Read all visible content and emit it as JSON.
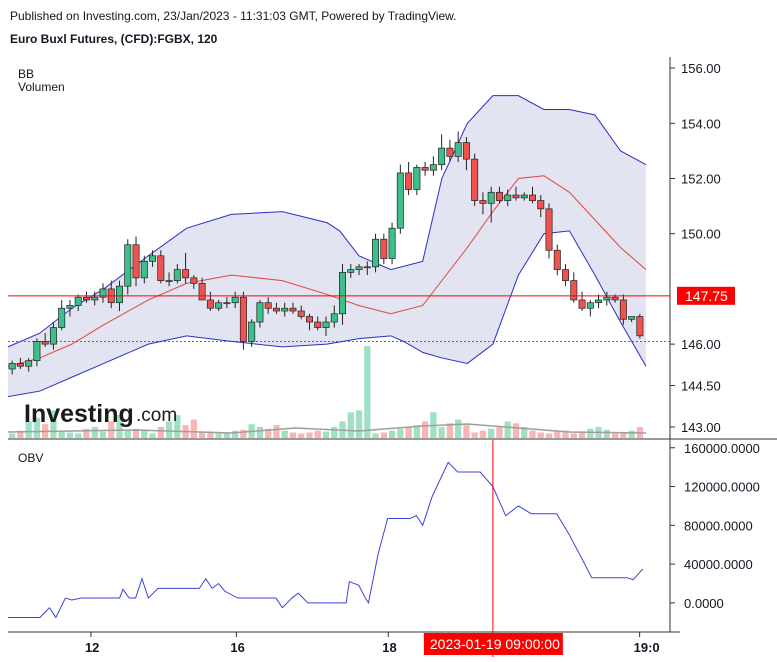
{
  "header": {
    "published": "Published on Investing.com, 23/Jan/2023 - 11:31:03 GMT, Powered by TradingView.",
    "title": "Euro Buxl Futures, (CFD):FGBX, 120"
  },
  "watermark": {
    "brand": "Investing",
    "suffix": ".com"
  },
  "colors": {
    "up": "#26a69a",
    "up_fill": "#3dbf8a",
    "down": "#ef5350",
    "bb_band": "#2a2ec8",
    "bb_mid": "#e2453c",
    "bb_fill": "#e3e4f2",
    "obv": "#3c44dd",
    "last_price": "#ff0000"
  },
  "chart_data": [
    {
      "type": "candlestick",
      "indicators": [
        "BB",
        "Volumen"
      ],
      "y_ticks": [
        "156.00",
        "154.00",
        "152.00",
        "150.00",
        "146.00",
        "144.50",
        "143.00"
      ],
      "ylim": [
        142.6,
        156.4
      ],
      "last_price_label": "147.75",
      "last_price": 147.75,
      "prev_close": 146.1,
      "x_ticks": [
        "12",
        "16",
        "18",
        "19:0"
      ],
      "candles": [
        [
          145.1,
          145.4,
          144.9,
          145.3
        ],
        [
          145.3,
          145.5,
          145.1,
          145.2
        ],
        [
          145.2,
          145.5,
          145.0,
          145.4
        ],
        [
          145.4,
          146.2,
          145.2,
          146.1
        ],
        [
          146.1,
          146.4,
          145.9,
          146.0
        ],
        [
          146.0,
          146.8,
          145.8,
          146.6
        ],
        [
          146.6,
          147.6,
          146.5,
          147.3
        ],
        [
          147.3,
          147.6,
          147.0,
          147.4
        ],
        [
          147.4,
          147.8,
          147.2,
          147.7
        ],
        [
          147.7,
          147.9,
          147.5,
          147.6
        ],
        [
          147.6,
          147.9,
          147.4,
          147.7
        ],
        [
          147.7,
          148.2,
          147.5,
          148.0
        ],
        [
          148.0,
          148.3,
          147.3,
          147.5
        ],
        [
          147.5,
          148.3,
          147.2,
          148.1
        ],
        [
          148.1,
          149.8,
          147.8,
          149.6
        ],
        [
          149.6,
          149.9,
          148.1,
          148.4
        ],
        [
          148.4,
          149.2,
          148.2,
          149.0
        ],
        [
          149.0,
          149.4,
          148.8,
          149.2
        ],
        [
          149.2,
          149.4,
          148.2,
          148.3
        ],
        [
          148.3,
          148.6,
          148.1,
          148.3
        ],
        [
          148.3,
          148.9,
          148.2,
          148.7
        ],
        [
          148.7,
          149.3,
          148.2,
          148.4
        ],
        [
          148.4,
          148.5,
          148.0,
          148.2
        ],
        [
          148.2,
          148.4,
          147.6,
          147.6
        ],
        [
          147.6,
          147.9,
          147.2,
          147.3
        ],
        [
          147.3,
          147.6,
          147.2,
          147.5
        ],
        [
          147.5,
          147.7,
          147.3,
          147.5
        ],
        [
          147.5,
          147.9,
          147.3,
          147.7
        ],
        [
          147.7,
          147.9,
          145.8,
          146.1
        ],
        [
          146.1,
          146.9,
          145.9,
          146.8
        ],
        [
          146.8,
          147.6,
          146.6,
          147.5
        ],
        [
          147.5,
          147.7,
          147.1,
          147.3
        ],
        [
          147.3,
          147.5,
          147.1,
          147.2
        ],
        [
          147.2,
          147.5,
          147.0,
          147.3
        ],
        [
          147.3,
          147.5,
          147.1,
          147.2
        ],
        [
          147.2,
          147.4,
          146.9,
          147.0
        ],
        [
          147.0,
          147.1,
          146.5,
          146.8
        ],
        [
          146.8,
          147.0,
          146.5,
          146.6
        ],
        [
          146.6,
          147.0,
          146.3,
          146.8
        ],
        [
          146.8,
          147.4,
          146.6,
          147.1
        ],
        [
          147.1,
          148.9,
          146.7,
          148.6
        ],
        [
          148.6,
          148.9,
          148.4,
          148.7
        ],
        [
          148.7,
          148.9,
          148.5,
          148.8
        ],
        [
          148.8,
          149.0,
          148.5,
          148.8
        ],
        [
          148.8,
          150.0,
          148.6,
          149.8
        ],
        [
          149.8,
          150.0,
          148.9,
          149.1
        ],
        [
          149.1,
          150.4,
          148.9,
          150.2
        ],
        [
          150.2,
          152.5,
          150.0,
          152.2
        ],
        [
          152.2,
          152.6,
          151.4,
          151.6
        ],
        [
          151.6,
          152.5,
          151.4,
          152.4
        ],
        [
          152.4,
          152.6,
          152.1,
          152.3
        ],
        [
          152.3,
          152.8,
          152.1,
          152.5
        ],
        [
          152.5,
          153.6,
          152.3,
          153.1
        ],
        [
          153.1,
          153.4,
          152.6,
          152.8
        ],
        [
          152.8,
          153.7,
          152.6,
          153.3
        ],
        [
          153.3,
          153.5,
          152.3,
          152.7
        ],
        [
          152.7,
          152.9,
          151.0,
          151.2
        ],
        [
          151.2,
          151.5,
          150.7,
          151.1
        ],
        [
          151.1,
          151.7,
          150.4,
          151.5
        ],
        [
          151.5,
          151.7,
          151.1,
          151.2
        ],
        [
          151.2,
          151.6,
          151.0,
          151.4
        ],
        [
          151.4,
          151.7,
          151.2,
          151.3
        ],
        [
          151.3,
          151.5,
          151.2,
          151.4
        ],
        [
          151.4,
          151.7,
          151.1,
          151.2
        ],
        [
          151.2,
          151.4,
          150.6,
          150.9
        ],
        [
          150.9,
          151.1,
          149.1,
          149.4
        ],
        [
          149.4,
          149.6,
          148.5,
          148.7
        ],
        [
          148.7,
          148.9,
          148.1,
          148.3
        ],
        [
          148.3,
          148.6,
          147.5,
          147.6
        ],
        [
          147.6,
          147.9,
          147.2,
          147.3
        ],
        [
          147.3,
          147.6,
          147.0,
          147.5
        ],
        [
          147.5,
          147.8,
          147.3,
          147.6
        ],
        [
          147.6,
          147.9,
          147.4,
          147.7
        ],
        [
          147.7,
          147.8,
          147.5,
          147.6
        ],
        [
          147.6,
          147.8,
          146.7,
          146.9
        ],
        [
          146.9,
          147.0,
          146.8,
          147.0
        ],
        [
          147.0,
          147.1,
          146.2,
          146.3
        ]
      ],
      "bb_upper": [
        [
          0,
          145.9
        ],
        [
          0.05,
          146.4
        ],
        [
          0.1,
          147.3
        ],
        [
          0.15,
          148.0
        ],
        [
          0.22,
          149.2
        ],
        [
          0.28,
          150.2
        ],
        [
          0.35,
          150.7
        ],
        [
          0.43,
          150.8
        ],
        [
          0.5,
          150.4
        ],
        [
          0.52,
          150.1
        ],
        [
          0.55,
          149.2
        ],
        [
          0.6,
          148.7
        ],
        [
          0.65,
          149.0
        ],
        [
          0.68,
          152.0
        ],
        [
          0.72,
          154.0
        ],
        [
          0.76,
          155.0
        ],
        [
          0.8,
          155.0
        ],
        [
          0.84,
          154.5
        ],
        [
          0.88,
          154.5
        ],
        [
          0.92,
          154.3
        ],
        [
          0.96,
          153.0
        ],
        [
          1,
          152.5
        ]
      ],
      "bb_middle": [
        [
          0,
          145.2
        ],
        [
          0.05,
          145.5
        ],
        [
          0.1,
          146.0
        ],
        [
          0.15,
          146.7
        ],
        [
          0.22,
          147.6
        ],
        [
          0.28,
          148.2
        ],
        [
          0.35,
          148.5
        ],
        [
          0.43,
          148.3
        ],
        [
          0.5,
          147.8
        ],
        [
          0.55,
          147.4
        ],
        [
          0.6,
          147.1
        ],
        [
          0.65,
          147.4
        ],
        [
          0.68,
          148.3
        ],
        [
          0.72,
          149.5
        ],
        [
          0.76,
          150.8
        ],
        [
          0.8,
          152.0
        ],
        [
          0.84,
          152.1
        ],
        [
          0.88,
          151.5
        ],
        [
          0.92,
          150.5
        ],
        [
          0.96,
          149.5
        ],
        [
          1,
          148.7
        ]
      ],
      "bb_lower": [
        [
          0,
          144.1
        ],
        [
          0.05,
          144.3
        ],
        [
          0.1,
          144.8
        ],
        [
          0.15,
          145.3
        ],
        [
          0.22,
          146.0
        ],
        [
          0.28,
          146.3
        ],
        [
          0.35,
          146.1
        ],
        [
          0.43,
          145.9
        ],
        [
          0.5,
          146.0
        ],
        [
          0.55,
          146.2
        ],
        [
          0.6,
          146.3
        ],
        [
          0.62,
          146.1
        ],
        [
          0.65,
          145.7
        ],
        [
          0.68,
          145.5
        ],
        [
          0.72,
          145.3
        ],
        [
          0.76,
          146.0
        ],
        [
          0.8,
          148.5
        ],
        [
          0.84,
          150.0
        ],
        [
          0.88,
          150.1
        ],
        [
          0.92,
          148.5
        ],
        [
          0.96,
          146.8
        ],
        [
          1,
          145.2
        ]
      ],
      "volume_max": 1,
      "volumes": [
        0.05,
        0.08,
        0.18,
        0.22,
        0.15,
        0.3,
        0.08,
        0.06,
        0.05,
        0.1,
        0.12,
        0.07,
        0.18,
        0.25,
        0.08,
        0.1,
        0.08,
        0.05,
        0.12,
        0.18,
        0.25,
        0.14,
        0.2,
        0.06,
        0.07,
        0.05,
        0.06,
        0.08,
        0.09,
        0.15,
        0.12,
        0.1,
        0.14,
        0.08,
        0.06,
        0.05,
        0.06,
        0.08,
        0.07,
        0.12,
        0.18,
        0.28,
        0.3,
        1.0,
        0.05,
        0.06,
        0.08,
        0.1,
        0.12,
        0.14,
        0.18,
        0.28,
        0.12,
        0.16,
        0.2,
        0.14,
        0.06,
        0.08,
        0.1,
        0.12,
        0.18,
        0.16,
        0.12,
        0.08,
        0.06,
        0.05,
        0.07,
        0.08,
        0.05,
        0.06,
        0.1,
        0.12,
        0.09,
        0.05,
        0.06,
        0.08,
        0.12
      ]
    },
    {
      "type": "line",
      "name": "OBV",
      "y_ticks": [
        "160000.0000",
        "120000.0000",
        "80000.0000",
        "40000.0000",
        "0.0000"
      ],
      "ylim": [
        -30000,
        168000
      ],
      "crosshair_label": "2023-01-19 09:00:00",
      "crosshair_at": 0.76,
      "points": [
        [
          0,
          -15000
        ],
        [
          0.05,
          -15000
        ],
        [
          0.065,
          -5000
        ],
        [
          0.075,
          -15000
        ],
        [
          0.09,
          5000
        ],
        [
          0.1,
          3000
        ],
        [
          0.115,
          5000
        ],
        [
          0.125,
          5000
        ],
        [
          0.15,
          5000
        ],
        [
          0.175,
          5000
        ],
        [
          0.18,
          14000
        ],
        [
          0.19,
          5000
        ],
        [
          0.2,
          5000
        ],
        [
          0.21,
          25000
        ],
        [
          0.22,
          5000
        ],
        [
          0.235,
          15000
        ],
        [
          0.25,
          15000
        ],
        [
          0.28,
          15000
        ],
        [
          0.3,
          15000
        ],
        [
          0.31,
          25000
        ],
        [
          0.32,
          15000
        ],
        [
          0.33,
          20000
        ],
        [
          0.34,
          12000
        ],
        [
          0.36,
          5000
        ],
        [
          0.38,
          5000
        ],
        [
          0.4,
          5000
        ],
        [
          0.42,
          5000
        ],
        [
          0.43,
          -5000
        ],
        [
          0.445,
          5000
        ],
        [
          0.455,
          10000
        ],
        [
          0.47,
          0
        ],
        [
          0.49,
          0
        ],
        [
          0.51,
          0
        ],
        [
          0.53,
          0
        ],
        [
          0.535,
          22000
        ],
        [
          0.55,
          18000
        ],
        [
          0.56,
          5000
        ],
        [
          0.565,
          0
        ],
        [
          0.58,
          50000
        ],
        [
          0.595,
          87000
        ],
        [
          0.63,
          87000
        ],
        [
          0.64,
          90000
        ],
        [
          0.65,
          80000
        ],
        [
          0.665,
          110000
        ],
        [
          0.69,
          145000
        ],
        [
          0.705,
          135000
        ],
        [
          0.74,
          135000
        ],
        [
          0.76,
          120000
        ],
        [
          0.78,
          90000
        ],
        [
          0.8,
          100000
        ],
        [
          0.82,
          92000
        ],
        [
          0.86,
          92000
        ],
        [
          0.88,
          70000
        ],
        [
          0.9,
          45000
        ],
        [
          0.915,
          26000
        ],
        [
          0.95,
          26000
        ],
        [
          0.97,
          26000
        ],
        [
          0.98,
          24000
        ],
        [
          0.995,
          35000
        ]
      ]
    }
  ]
}
